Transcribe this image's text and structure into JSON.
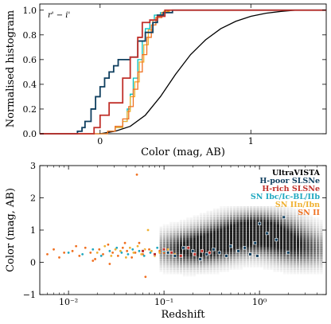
{
  "chart_data": [
    {
      "type": "line",
      "panel_label": "r' − i'",
      "xlabel": "Color (mag, AB)",
      "ylabel": "Normalised histogram",
      "xlim": [
        -0.4,
        1.5
      ],
      "ylim": [
        0,
        1.05
      ],
      "xticks": [
        0,
        1
      ],
      "xtick_labels": [
        "0",
        "1"
      ],
      "yticks": [
        0,
        0.2,
        0.4,
        0.6,
        0.8,
        1.0
      ],
      "ytick_labels": [
        "0.0",
        "0.2",
        "0.4",
        "0.6",
        "0.8",
        "1.0"
      ],
      "series": [
        {
          "color": "#000000",
          "step": false,
          "x": [
            0.0,
            0.1,
            0.2,
            0.3,
            0.4,
            0.5,
            0.6,
            0.7,
            0.8,
            0.9,
            1.0,
            1.1,
            1.2,
            1.3,
            1.5
          ],
          "y": [
            0.0,
            0.02,
            0.06,
            0.15,
            0.3,
            0.48,
            0.64,
            0.76,
            0.85,
            0.91,
            0.95,
            0.975,
            0.99,
            1.0,
            1.0
          ]
        },
        {
          "color": "#00BFBF",
          "step": true,
          "x": [
            -0.4,
            -0.05,
            0.05,
            0.1,
            0.15,
            0.18,
            0.2,
            0.22,
            0.25,
            0.28,
            0.3,
            0.33,
            0.36,
            0.4,
            0.45,
            1.5
          ],
          "y": [
            0.0,
            0.0,
            0.02,
            0.05,
            0.1,
            0.2,
            0.32,
            0.45,
            0.6,
            0.75,
            0.85,
            0.92,
            0.96,
            0.98,
            1.0,
            1.0
          ]
        },
        {
          "color": "#F0B030",
          "step": true,
          "x": [
            -0.4,
            -0.05,
            0.05,
            0.1,
            0.15,
            0.18,
            0.2,
            0.23,
            0.26,
            0.29,
            0.32,
            0.35,
            0.38,
            0.42,
            0.46,
            1.5
          ],
          "y": [
            0.0,
            0.0,
            0.02,
            0.05,
            0.1,
            0.18,
            0.3,
            0.42,
            0.58,
            0.72,
            0.84,
            0.92,
            0.96,
            0.99,
            1.0,
            1.0
          ]
        },
        {
          "color": "#F07020",
          "step": true,
          "x": [
            -0.4,
            -0.05,
            0.05,
            0.1,
            0.15,
            0.19,
            0.22,
            0.25,
            0.28,
            0.31,
            0.34,
            0.37,
            0.41,
            0.45,
            1.5
          ],
          "y": [
            0.0,
            0.0,
            0.02,
            0.06,
            0.12,
            0.22,
            0.36,
            0.5,
            0.64,
            0.78,
            0.88,
            0.94,
            0.98,
            1.0,
            1.0
          ]
        },
        {
          "color": "#0F3F5F",
          "step": true,
          "x": [
            -0.4,
            -0.2,
            -0.15,
            -0.12,
            -0.1,
            -0.06,
            -0.03,
            0.0,
            0.03,
            0.06,
            0.09,
            0.12,
            0.15,
            0.2,
            0.25,
            0.3,
            0.35,
            0.38,
            0.42,
            0.48,
            1.5
          ],
          "y": [
            0.0,
            0.0,
            0.02,
            0.05,
            0.1,
            0.2,
            0.3,
            0.38,
            0.45,
            0.5,
            0.55,
            0.6,
            0.6,
            0.62,
            0.75,
            0.82,
            0.9,
            0.96,
            0.98,
            1.0,
            1.0
          ]
        },
        {
          "color": "#C0302A",
          "step": true,
          "x": [
            -0.4,
            -0.08,
            -0.04,
            0.0,
            0.06,
            0.12,
            0.15,
            0.2,
            0.25,
            0.28,
            0.33,
            0.38,
            0.43,
            1.5
          ],
          "y": [
            0.0,
            0.0,
            0.05,
            0.15,
            0.25,
            0.25,
            0.45,
            0.62,
            0.78,
            0.9,
            0.92,
            0.95,
            1.0,
            1.0
          ]
        }
      ]
    },
    {
      "type": "scatter",
      "xlabel": "Redshift",
      "ylabel": "Color (mag, AB)",
      "xscale": "log",
      "xlim": [
        0.005,
        5
      ],
      "ylim": [
        -1,
        3
      ],
      "xticks": [
        0.01,
        0.1,
        1
      ],
      "xtick_labels": [
        "10⁻²",
        "10⁻¹",
        "10⁰"
      ],
      "yticks": [
        -1,
        0,
        1,
        2,
        3
      ],
      "ytick_labels": [
        "−1",
        "0",
        "1",
        "2",
        "3"
      ],
      "legend_location": "upper-right",
      "legend": [
        {
          "label": "UltraVISTA",
          "color": "#000000"
        },
        {
          "label": "H-poor SLSNe",
          "color": "#0F3F5F"
        },
        {
          "label": "H-rich SLSNe",
          "color": "#C0302A"
        },
        {
          "label": "SN Ibc/Ic-BL/IIb",
          "color": "#1FA8C0"
        },
        {
          "label": "SN IIn/Ibn",
          "color": "#F0B030"
        },
        {
          "label": "SN II",
          "color": "#F07020"
        }
      ],
      "density": [
        {
          "z": 0.15,
          "c": 0.35,
          "w": 0.9
        },
        {
          "z": 0.25,
          "c": 0.45,
          "w": 1.0
        },
        {
          "z": 0.4,
          "c": 0.6,
          "w": 1.0
        },
        {
          "z": 0.6,
          "c": 0.9,
          "w": 1.0
        },
        {
          "z": 1.0,
          "c": 1.05,
          "w": 1.0
        },
        {
          "z": 1.4,
          "c": 0.8,
          "w": 0.9
        },
        {
          "z": 2.0,
          "c": 0.5,
          "w": 0.8
        },
        {
          "z": 3.0,
          "c": 0.3,
          "w": 0.6
        }
      ],
      "series": [
        {
          "name": "SN II",
          "color": "#F07020",
          "marker": "dot",
          "x": [
            0.006,
            0.007,
            0.008,
            0.009,
            0.011,
            0.013,
            0.015,
            0.017,
            0.019,
            0.021,
            0.023,
            0.026,
            0.029,
            0.033,
            0.037,
            0.041,
            0.046,
            0.05,
            0.055,
            0.06,
            0.07,
            0.08,
            0.09,
            0.1,
            0.012,
            0.018,
            0.027,
            0.039,
            0.052,
            0.064
          ],
          "y": [
            0.25,
            0.4,
            0.15,
            0.3,
            0.35,
            0.2,
            0.45,
            0.3,
            0.1,
            0.4,
            0.25,
            0.55,
            0.3,
            0.2,
            0.45,
            0.35,
            0.15,
            0.3,
            0.6,
            0.25,
            0.4,
            0.2,
            0.35,
            0.3,
            0.5,
            0.05,
            -0.05,
            0.6,
            2.72,
            -0.45
          ]
        },
        {
          "name": "SN IIn/Ibn",
          "color": "#F0B030",
          "marker": "dot",
          "x": [
            0.02,
            0.024,
            0.028,
            0.031,
            0.035,
            0.04,
            0.044,
            0.048,
            0.053,
            0.058,
            0.063,
            0.068,
            0.074,
            0.08,
            0.09,
            0.11,
            0.13
          ],
          "y": [
            0.3,
            0.5,
            0.2,
            0.4,
            0.35,
            0.15,
            0.45,
            0.3,
            0.5,
            0.25,
            0.4,
            1.0,
            0.35,
            0.2,
            0.3,
            0.4,
            0.25
          ]
        },
        {
          "name": "SN Ibc/Ic-BL/IIb",
          "color": "#1FA8C0",
          "marker": "dot",
          "x": [
            0.01,
            0.014,
            0.018,
            0.022,
            0.027,
            0.032,
            0.036,
            0.042,
            0.047,
            0.055,
            0.062,
            0.072,
            0.085,
            0.1,
            0.12
          ],
          "y": [
            0.3,
            0.25,
            0.4,
            0.2,
            0.35,
            0.45,
            0.3,
            0.25,
            0.4,
            0.35,
            0.2,
            0.3,
            0.45,
            0.35,
            0.3
          ]
        },
        {
          "name": "H-rich SLSNe",
          "color": "#C0302A",
          "marker": "open-square",
          "x": [
            0.06,
            0.08,
            0.1,
            0.12,
            0.15,
            0.18,
            0.21,
            0.25,
            0.3
          ],
          "y": [
            0.35,
            0.25,
            0.4,
            0.3,
            0.2,
            0.45,
            0.25,
            0.35,
            0.3
          ]
        },
        {
          "name": "H-poor SLSNe",
          "color": "#0F3F5F",
          "marker": "open-square",
          "x": [
            0.11,
            0.13,
            0.16,
            0.2,
            0.24,
            0.28,
            0.33,
            0.38,
            0.45,
            0.5,
            0.6,
            0.7,
            0.8,
            0.9,
            1.0,
            1.2,
            1.5,
            1.8,
            2.0,
            0.95
          ],
          "y": [
            0.3,
            0.2,
            0.45,
            0.35,
            0.1,
            0.25,
            0.4,
            0.3,
            0.2,
            0.5,
            0.35,
            0.45,
            0.25,
            0.6,
            1.2,
            0.9,
            0.7,
            1.4,
            0.3,
            0.2
          ]
        }
      ]
    }
  ]
}
